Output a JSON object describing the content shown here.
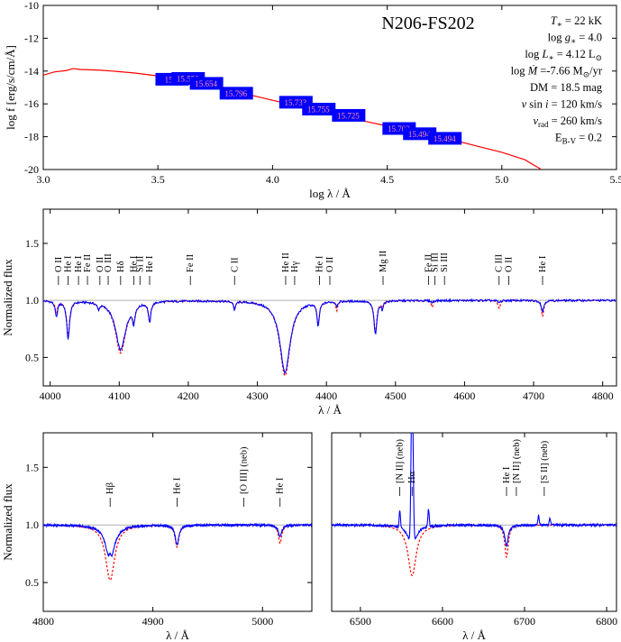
{
  "chart_data": [
    {
      "type": "line",
      "panel": "sed",
      "title": "N206-FS202",
      "xlabel": "log λ / Å",
      "ylabel": "log f<sub>λ</sub> [erg/s/cm<sup>2</sup>/Å]",
      "xlim": [
        3.0,
        5.5
      ],
      "ylim": [
        -20,
        -10
      ],
      "xticks": [
        "3.0",
        "3.5",
        "4.0",
        "4.5",
        "5.0",
        "5.5"
      ],
      "yticks": [
        "-20",
        "-18",
        "-16",
        "-14",
        "-12",
        "-10"
      ],
      "grid": false,
      "series": [
        {
          "color": "#ff0000",
          "x": [
            3.0,
            3.05,
            3.1,
            3.13,
            3.16,
            3.2,
            3.25,
            3.3,
            3.4,
            3.5,
            3.6,
            3.7,
            3.8,
            3.9,
            4.0,
            4.1,
            4.2,
            4.3,
            4.4,
            4.5,
            4.6,
            4.7,
            4.8,
            4.9,
            5.0,
            5.1,
            5.17
          ],
          "y": [
            -14.25,
            -14.05,
            -13.97,
            -13.85,
            -13.9,
            -13.92,
            -13.95,
            -14.0,
            -14.12,
            -14.3,
            -14.55,
            -14.85,
            -15.15,
            -15.45,
            -15.78,
            -16.1,
            -16.42,
            -16.75,
            -17.05,
            -17.35,
            -17.62,
            -17.92,
            -18.25,
            -18.6,
            -18.95,
            -19.4,
            -19.98
          ]
        }
      ],
      "photometry": [
        {
          "x": 3.56,
          "y": -14.5,
          "label": "15.5"
        },
        {
          "x": 3.63,
          "y": -14.45,
          "label": "15.556"
        },
        {
          "x": 3.71,
          "y": -14.75,
          "label": "15.654"
        },
        {
          "x": 3.84,
          "y": -15.35,
          "label": "15.796"
        },
        {
          "x": 4.1,
          "y": -15.9,
          "label": "15.733"
        },
        {
          "x": 4.2,
          "y": -16.32,
          "label": "15.755"
        },
        {
          "x": 4.33,
          "y": -16.7,
          "label": "15.725"
        },
        {
          "x": 4.55,
          "y": -17.5,
          "label": "15.702"
        },
        {
          "x": 4.64,
          "y": -17.82,
          "label": "15.494"
        },
        {
          "x": 4.75,
          "y": -18.1,
          "label": "15.494"
        }
      ],
      "parameters": [
        "<tspan font-style='italic'>T</tspan><tspan font-size='9' dy='3'>∗</tspan><tspan dy='-3'> = 22 kK</tspan>",
        "log <tspan font-style='italic'>g</tspan><tspan font-size='9' dy='3'>∗</tspan><tspan dy='-3'> =  4.0</tspan>",
        "log <tspan font-style='italic'>L</tspan><tspan font-size='9' dy='3'>∗</tspan><tspan dy='-3'> = 4.12 L</tspan><tspan font-size='9' dy='3'>⊙</tspan>",
        "log <tspan font-style='italic'>Ṁ</tspan> =-7.66 M<tspan font-size='9' dy='3'>⊙</tspan><tspan dy='-3'>/yr</tspan>",
        "DM = 18.5 mag",
        "<tspan font-style='italic'>v</tspan> sin <tspan font-style='italic'>i</tspan> = 120 km/s",
        "<tspan font-style='italic'>v</tspan><tspan font-size='9' dy='3'>rad</tspan><tspan dy='-3'> = 260 km/s</tspan>",
        "E<tspan font-size='9' dy='3'>B-V</tspan><tspan dy='-3'> = 0.2</tspan>"
      ]
    },
    {
      "type": "line",
      "panel": "blue_spectrum",
      "xlabel": "λ / Å",
      "ylabel": "Normalized flux",
      "xlim": [
        3990,
        4820
      ],
      "ylim": [
        0.25,
        1.8
      ],
      "xticks": [
        "4000",
        "4100",
        "4200",
        "4300",
        "4400",
        "4500",
        "4600",
        "4700",
        "4800"
      ],
      "yticks": [
        "0.5",
        "1.0",
        "1.5"
      ],
      "reference_level": 1.0,
      "series": [
        {
          "color": "#0000ff",
          "style": "solid"
        },
        {
          "color": "#ff0000",
          "style": "dashed"
        }
      ],
      "absorption_lines": [
        {
          "center": 4009,
          "obs": 0.86,
          "model": 0.9,
          "width": 2
        },
        {
          "center": 4026,
          "obs": 0.67,
          "model": 0.69,
          "width": 2.5
        },
        {
          "center": 4070,
          "obs": 0.95,
          "model": 0.96,
          "width": 2
        },
        {
          "center": 4102,
          "obs": 0.57,
          "model": 0.54,
          "width": 9
        },
        {
          "center": 4121,
          "obs": 0.86,
          "model": 0.88,
          "width": 2
        },
        {
          "center": 4144,
          "obs": 0.82,
          "model": 0.83,
          "width": 2
        },
        {
          "center": 4267,
          "obs": 0.92,
          "model": 0.93,
          "width": 1.5
        },
        {
          "center": 4340,
          "obs": 0.37,
          "model": 0.34,
          "width": 9
        },
        {
          "center": 4388,
          "obs": 0.79,
          "model": 0.8,
          "width": 2
        },
        {
          "center": 4415,
          "obs": 0.96,
          "model": 0.92,
          "width": 1.5
        },
        {
          "center": 4471,
          "obs": 0.7,
          "model": 0.72,
          "width": 2.5
        },
        {
          "center": 4481,
          "obs": 0.93,
          "model": 0.95,
          "width": 1.5
        },
        {
          "center": 4553,
          "obs": 0.98,
          "model": 0.94,
          "width": 1.5
        },
        {
          "center": 4650,
          "obs": 0.98,
          "model": 0.93,
          "width": 2
        },
        {
          "center": 4713,
          "obs": 0.9,
          "model": 0.86,
          "width": 2
        }
      ],
      "annotations": [
        {
          "label": "O II",
          "x": 4012
        },
        {
          "label": "He I",
          "x": 4026
        },
        {
          "label": "He I",
          "x": 4041
        },
        {
          "label": "Fe II",
          "x": 4054
        },
        {
          "label": "O II",
          "x": 4072
        },
        {
          "label": "O III",
          "x": 4084
        },
        {
          "label": "Hδ",
          "x": 4102
        },
        {
          "label": "He I",
          "x": 4121
        },
        {
          "label": "Si II",
          "x": 4130
        },
        {
          "label": "He I",
          "x": 4144
        },
        {
          "label": "Fe II",
          "x": 4203
        },
        {
          "label": "C II",
          "x": 4267
        },
        {
          "label": "He II",
          "x": 4341
        },
        {
          "label": "Hγ",
          "x": 4354
        },
        {
          "label": "He I",
          "x": 4390
        },
        {
          "label": "O II",
          "x": 4405
        },
        {
          "label": "Mg II",
          "x": 4482
        },
        {
          "label": "Fe II",
          "x": 4548
        },
        {
          "label": "Si III",
          "x": 4557
        },
        {
          "label": "Si III",
          "x": 4571
        },
        {
          "label": "C III",
          "x": 4650
        },
        {
          "label": "O II",
          "x": 4664
        },
        {
          "label": "He I",
          "x": 4713
        }
      ]
    },
    {
      "type": "line",
      "panel": "hbeta",
      "xlabel": "λ / Å",
      "ylabel": "Normalized flux",
      "xlim": [
        4800,
        5045
      ],
      "ylim": [
        0.25,
        1.8
      ],
      "xticks": [
        "4800",
        "4900",
        "5000"
      ],
      "yticks": [
        "0.5",
        "1.0",
        "1.5"
      ],
      "reference_level": 1.0,
      "absorption_lines": [
        {
          "center": 4861,
          "obs": 0.7,
          "model": 0.52,
          "width": 5
        },
        {
          "center": 4922,
          "obs": 0.83,
          "model": 0.81,
          "width": 2
        },
        {
          "center": 5016,
          "obs": 0.9,
          "model": 0.84,
          "width": 1.8
        }
      ],
      "emission_lines": [
        {
          "center": 4861,
          "peak": 1.05,
          "width": 0.8
        }
      ],
      "annotations": [
        {
          "label": "Hβ",
          "x": 4861
        },
        {
          "label": "He I",
          "x": 4922
        },
        {
          "label": "[O III] (neb)",
          "x": 4983
        },
        {
          "label": "He I",
          "x": 5016
        }
      ]
    },
    {
      "type": "line",
      "panel": "halpha",
      "xlabel": "λ / Å",
      "ylabel": "",
      "xlim": [
        6465,
        6812
      ],
      "ylim": [
        0.25,
        1.8
      ],
      "xticks": [
        "6500",
        "6600",
        "6700",
        "6800"
      ],
      "yticks": [],
      "reference_level": 1.0,
      "absorption_lines": [
        {
          "center": 6563,
          "obs": 0.82,
          "model": 0.56,
          "width": 6
        },
        {
          "center": 6678,
          "obs": 0.82,
          "model": 0.72,
          "width": 2.5
        }
      ],
      "emission_lines": [
        {
          "center": 6548,
          "peak": 1.15,
          "width": 0.8
        },
        {
          "center": 6563,
          "peak": 2.5,
          "width": 1.2
        },
        {
          "center": 6583,
          "peak": 1.15,
          "width": 0.8
        },
        {
          "center": 6717,
          "peak": 1.08,
          "width": 0.8
        },
        {
          "center": 6731,
          "peak": 1.06,
          "width": 0.8
        }
      ],
      "annotations": [
        {
          "label": "[N II] (neb)",
          "x": 6548
        },
        {
          "label": "Hα",
          "x": 6563
        },
        {
          "label": "He I",
          "x": 6678
        },
        {
          "label": "[N II] (neb)",
          "x": 6690
        },
        {
          "label": "[S II] (neb)",
          "x": 6724
        }
      ]
    }
  ]
}
